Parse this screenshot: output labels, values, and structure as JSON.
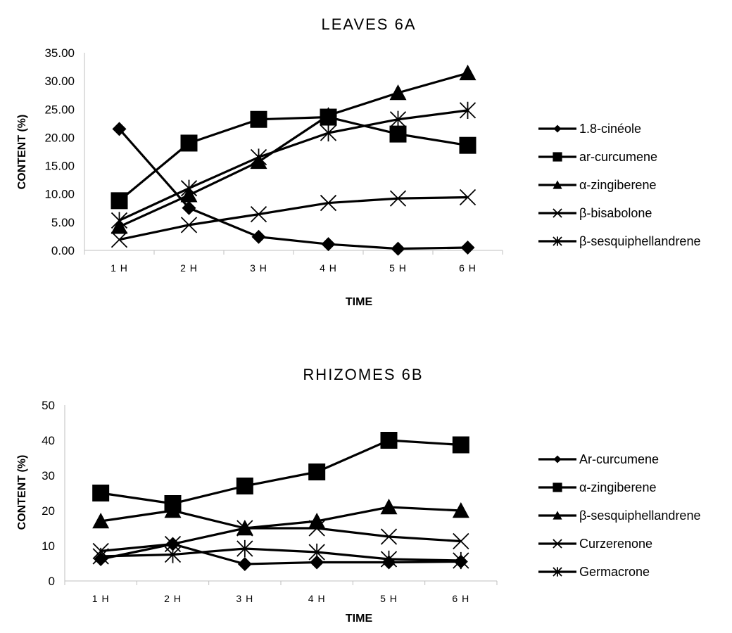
{
  "chart_data": [
    {
      "type": "line",
      "title": "LEAVES 6A",
      "xlabel": "TIME",
      "ylabel": "CONTENT (%)",
      "categories": [
        "1 H",
        "2 H",
        "3 H",
        "4 H",
        "5 H",
        "6 H"
      ],
      "ylim": [
        0,
        35
      ],
      "yticks": [
        "0.00",
        "5.00",
        "10.00",
        "15.00",
        "20.00",
        "25.00",
        "30.00",
        "35.00"
      ],
      "grid": false,
      "legend": "right",
      "series": [
        {
          "name": "1.8-cinéole",
          "marker": "diamond",
          "values": [
            21.5,
            7.5,
            2.4,
            1.1,
            0.3,
            0.5
          ]
        },
        {
          "name": "ar-curcumene",
          "marker": "square",
          "values": [
            8.8,
            19.0,
            23.2,
            23.6,
            20.6,
            18.6
          ]
        },
        {
          "name": "α-zingiberene",
          "marker": "triangle",
          "values": [
            4.2,
            9.8,
            15.7,
            23.9,
            27.9,
            31.4
          ]
        },
        {
          "name": "β-bisabolone",
          "marker": "x",
          "values": [
            1.9,
            4.5,
            6.4,
            8.4,
            9.2,
            9.4
          ]
        },
        {
          "name": "β-sesquiphellandrene",
          "marker": "star",
          "values": [
            5.3,
            11.0,
            16.5,
            20.8,
            23.2,
            24.8
          ]
        }
      ]
    },
    {
      "type": "line",
      "title": "RHIZOMES 6B",
      "xlabel": "TIME",
      "ylabel": "CONTENT (%)",
      "categories": [
        "1 H",
        "2 H",
        "3 H",
        "4 H",
        "5 H",
        "6 H"
      ],
      "ylim": [
        0,
        50
      ],
      "yticks": [
        "0",
        "10",
        "20",
        "30",
        "40",
        "50"
      ],
      "grid": false,
      "legend": "right",
      "series": [
        {
          "name": "Ar-curcumene",
          "marker": "diamond",
          "values": [
            6.2,
            10.5,
            4.8,
            5.3,
            5.3,
            5.5
          ]
        },
        {
          "name": "α-zingiberene",
          "marker": "square",
          "values": [
            25.0,
            22.0,
            27.0,
            31.0,
            40.0,
            38.7
          ]
        },
        {
          "name": "β-sesquiphellandrene",
          "marker": "triangle",
          "values": [
            17.0,
            20.0,
            15.0,
            17.0,
            21.0,
            20.0
          ]
        },
        {
          "name": "Curzerenone",
          "marker": "x",
          "values": [
            8.5,
            10.5,
            15.0,
            15.0,
            12.6,
            11.3
          ]
        },
        {
          "name": "Germacrone",
          "marker": "star",
          "values": [
            7.0,
            7.5,
            9.2,
            8.2,
            6.2,
            5.8
          ]
        }
      ]
    }
  ]
}
